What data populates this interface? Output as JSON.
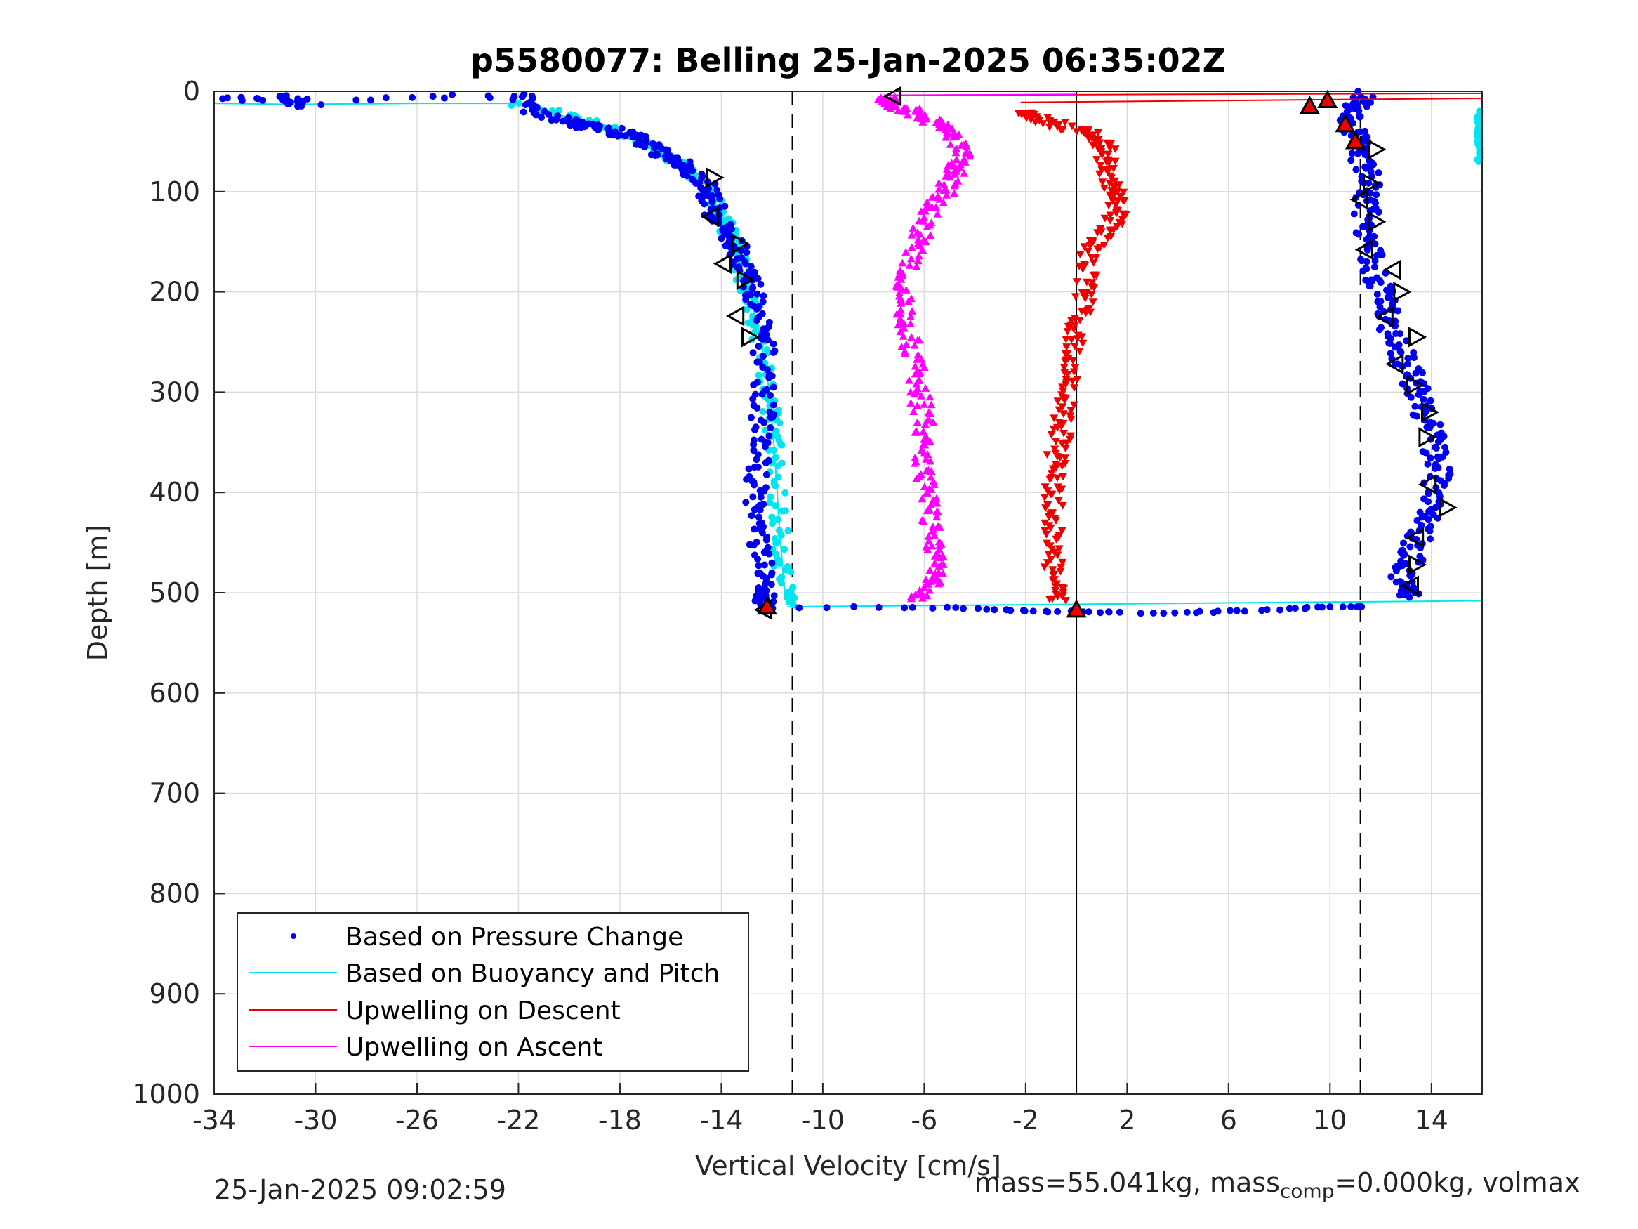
{
  "chart_data": {
    "type": "scatter",
    "title": "p5580077: Belling 25-Jan-2025 06:35:02Z",
    "xlabel": "Vertical Velocity [cm/s]",
    "ylabel": "Depth [m]",
    "xlim": [
      -34,
      16
    ],
    "ylim": [
      0,
      1000
    ],
    "y_reversed": true,
    "grid": true,
    "legend_position": "bottom-left",
    "xticks": [
      -34,
      -30,
      -26,
      -22,
      -18,
      -14,
      -10,
      -6,
      -2,
      2,
      6,
      10,
      14
    ],
    "yticks": [
      0,
      100,
      200,
      300,
      400,
      500,
      600,
      700,
      800,
      900,
      1000
    ],
    "reference_lines": {
      "dashed_x": [
        -11.2,
        11.2
      ],
      "solid_x": [
        0
      ]
    },
    "series": [
      {
        "name": "Based on Pressure Change",
        "color": "#0000ee",
        "marker": "dot",
        "descent": [
          [
            -33.6,
            8
          ],
          [
            -30.7,
            6
          ],
          [
            -31,
            13
          ],
          [
            -22,
            2
          ],
          [
            -21.6,
            17
          ],
          [
            -20.5,
            28
          ],
          [
            -19.5,
            33
          ],
          [
            -18.5,
            38
          ],
          [
            -17.5,
            45
          ],
          [
            -16.8,
            55
          ],
          [
            -16.1,
            65
          ],
          [
            -15.6,
            72
          ],
          [
            -15.2,
            82
          ],
          [
            -14.6,
            95
          ],
          [
            -14.4,
            108
          ],
          [
            -14.2,
            123
          ],
          [
            -13.8,
            140
          ],
          [
            -13.4,
            155
          ],
          [
            -13.1,
            172
          ],
          [
            -12.9,
            190
          ],
          [
            -12.7,
            210
          ],
          [
            -12.4,
            240
          ],
          [
            -12.3,
            270
          ],
          [
            -12.3,
            300
          ],
          [
            -12.4,
            330
          ],
          [
            -12.5,
            360
          ],
          [
            -12.6,
            390
          ],
          [
            -12.6,
            420
          ],
          [
            -12.5,
            450
          ],
          [
            -12.4,
            480
          ],
          [
            -12.3,
            500
          ],
          [
            -12.2,
            512
          ]
        ],
        "ascent": [
          [
            13.2,
            505
          ],
          [
            12.8,
            490
          ],
          [
            13.1,
            470
          ],
          [
            13.4,
            450
          ],
          [
            13.8,
            430
          ],
          [
            14.1,
            405
          ],
          [
            14.3,
            380
          ],
          [
            14.1,
            355
          ],
          [
            13.8,
            325
          ],
          [
            13.5,
            300
          ],
          [
            13.1,
            275
          ],
          [
            12.6,
            250
          ],
          [
            12.3,
            225
          ],
          [
            12.1,
            205
          ],
          [
            11.8,
            185
          ],
          [
            11.6,
            160
          ],
          [
            11.5,
            135
          ],
          [
            11.4,
            110
          ],
          [
            11.5,
            90
          ],
          [
            11.3,
            65
          ],
          [
            11.0,
            45
          ],
          [
            10.8,
            30
          ],
          [
            11.1,
            15
          ],
          [
            11.3,
            2
          ]
        ],
        "bottom_scatter": [
          [
            -11.9,
            515
          ],
          [
            -7.6,
            514
          ],
          [
            -5.1,
            515
          ],
          [
            -3.5,
            516
          ],
          [
            -2.2,
            518
          ],
          [
            -1.0,
            519
          ],
          [
            0.5,
            519
          ],
          [
            1.8,
            520
          ],
          [
            4.0,
            520
          ],
          [
            5.3,
            519
          ],
          [
            6.8,
            518
          ],
          [
            8.3,
            516
          ],
          [
            9.6,
            515
          ],
          [
            10.7,
            514
          ],
          [
            11.6,
            513
          ]
        ]
      },
      {
        "name": "Based on Buoyancy and Pitch",
        "color": "#00e5ee",
        "marker": "line",
        "descent": [
          [
            -34,
            12
          ],
          [
            -31,
            13
          ],
          [
            -26,
            12
          ],
          [
            -22,
            12
          ],
          [
            -20.2,
            25
          ],
          [
            -18.8,
            35
          ],
          [
            -17.5,
            45
          ],
          [
            -16.6,
            58
          ],
          [
            -15.8,
            70
          ],
          [
            -15.0,
            85
          ],
          [
            -14.6,
            100
          ],
          [
            -14.0,
            120
          ],
          [
            -13.7,
            140
          ],
          [
            -13.4,
            160
          ],
          [
            -13.1,
            185
          ],
          [
            -12.8,
            210
          ],
          [
            -12.5,
            240
          ],
          [
            -12.3,
            270
          ],
          [
            -12.1,
            300
          ],
          [
            -12.0,
            330
          ],
          [
            -11.9,
            360
          ],
          [
            -11.8,
            400
          ],
          [
            -11.7,
            440
          ],
          [
            -11.6,
            470
          ],
          [
            -11.5,
            500
          ],
          [
            -11.4,
            512
          ]
        ],
        "ascent": [
          [
            16,
            20
          ],
          [
            16,
            35
          ],
          [
            16,
            50
          ],
          [
            16,
            60
          ],
          [
            16,
            70
          ]
        ],
        "bottom_line": [
          [
            -11.4,
            514
          ],
          [
            16,
            508
          ]
        ]
      },
      {
        "name": "Upwelling on Descent",
        "color": "#ee0000",
        "marker": "triangle-down",
        "points": [
          [
            -2,
            20
          ],
          [
            -1.5,
            28
          ],
          [
            -0.3,
            35
          ],
          [
            0.8,
            45
          ],
          [
            1.2,
            60
          ],
          [
            1.1,
            80
          ],
          [
            1.5,
            100
          ],
          [
            1.7,
            120
          ],
          [
            1.2,
            140
          ],
          [
            0.5,
            160
          ],
          [
            0.4,
            190
          ],
          [
            0.2,
            220
          ],
          [
            -0.1,
            250
          ],
          [
            -0.3,
            280
          ],
          [
            -0.4,
            310
          ],
          [
            -0.6,
            340
          ],
          [
            -0.8,
            370
          ],
          [
            -0.9,
            400
          ],
          [
            -0.9,
            430
          ],
          [
            -0.9,
            460
          ],
          [
            -0.9,
            490
          ],
          [
            -0.8,
            510
          ]
        ],
        "top_lines": [
          [
            [
              -7.5,
              4
            ],
            [
              16,
              2
            ]
          ],
          [
            [
              -2.2,
              11
            ],
            [
              16,
              7
            ]
          ]
        ]
      },
      {
        "name": "Upwelling on Ascent",
        "color": "#ff00ff",
        "marker": "triangle-up",
        "points": [
          [
            -6.2,
            505
          ],
          [
            -5.6,
            490
          ],
          [
            -5.4,
            470
          ],
          [
            -5.6,
            450
          ],
          [
            -5.8,
            420
          ],
          [
            -6,
            390
          ],
          [
            -6.1,
            360
          ],
          [
            -6.0,
            330
          ],
          [
            -6.2,
            300
          ],
          [
            -6.4,
            270
          ],
          [
            -6.6,
            240
          ],
          [
            -6.8,
            210
          ],
          [
            -6.7,
            180
          ],
          [
            -6.3,
            150
          ],
          [
            -5.8,
            120
          ],
          [
            -5.2,
            100
          ],
          [
            -4.8,
            80
          ],
          [
            -4.5,
            65
          ],
          [
            -4.8,
            45
          ],
          [
            -5.5,
            30
          ],
          [
            -6.5,
            20
          ],
          [
            -7.3,
            12
          ],
          [
            -7.6,
            6
          ]
        ],
        "top_lines": [
          [
            [
              -7.5,
              4
            ],
            [
              0,
              3
            ]
          ]
        ]
      }
    ],
    "open_triangles": [
      [
        -14.3,
        86,
        "right"
      ],
      [
        -14.4,
        125,
        "left"
      ],
      [
        -13.3,
        152,
        "right"
      ],
      [
        -13.9,
        172,
        "left"
      ],
      [
        -13.1,
        188,
        "right"
      ],
      [
        -13.4,
        224,
        "left"
      ],
      [
        -12.9,
        245,
        "right"
      ],
      [
        -12.3,
        517,
        "left"
      ],
      [
        -7.2,
        5,
        "left"
      ],
      [
        11.8,
        58,
        "right"
      ],
      [
        11.6,
        92,
        "right"
      ],
      [
        11.2,
        108,
        "left"
      ],
      [
        11.8,
        130,
        "right"
      ],
      [
        11.4,
        158,
        "left"
      ],
      [
        12.5,
        178,
        "left"
      ],
      [
        12.8,
        200,
        "right"
      ],
      [
        12.2,
        225,
        "left"
      ],
      [
        13.4,
        245,
        "right"
      ],
      [
        12.6,
        272,
        "left"
      ],
      [
        13.3,
        293,
        "right"
      ],
      [
        13.9,
        320,
        "right"
      ],
      [
        13.8,
        345,
        "right"
      ],
      [
        13.9,
        392,
        "left"
      ],
      [
        14.6,
        415,
        "right"
      ],
      [
        13.4,
        445,
        "left"
      ],
      [
        13.4,
        472,
        "right"
      ],
      [
        13.2,
        493,
        "left"
      ]
    ],
    "red_filled_triangles": [
      [
        -12.2,
        514
      ],
      [
        0,
        517
      ],
      [
        9.2,
        15
      ],
      [
        9.9,
        9
      ],
      [
        10.6,
        33
      ],
      [
        11.0,
        50
      ]
    ]
  },
  "footer": {
    "timestamp": "25-Jan-2025 09:02:59",
    "mass_text": "mass=55.041kg, mass",
    "mass_sub": "comp",
    "mass_rest": "=0.000kg, volmax"
  }
}
